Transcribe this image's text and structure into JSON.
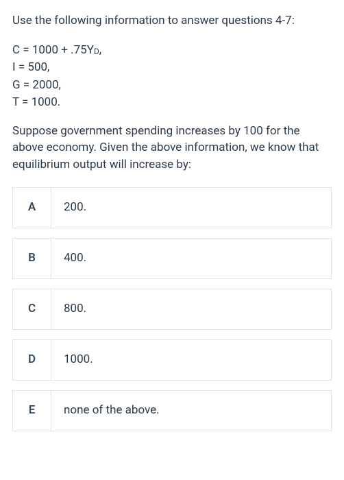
{
  "intro": "Use the following information to answer questions 4-7:",
  "equations": {
    "line1_pre": "C = 1000 + .75Y",
    "line1_sub": "D",
    "line1_post": ",",
    "line2": "I = 500,",
    "line3": "G = 2000,",
    "line4": "T = 1000."
  },
  "question": "Suppose government spending increases by 100 for the above economy. Given the above information, we know that equilibrium output will increase by:",
  "options": [
    {
      "letter": "A",
      "text": "200."
    },
    {
      "letter": "B",
      "text": "400."
    },
    {
      "letter": "C",
      "text": "800."
    },
    {
      "letter": "D",
      "text": "1000."
    },
    {
      "letter": "E",
      "text": "none of the above."
    }
  ],
  "colors": {
    "text": "#2b3a4a",
    "border": "#dfe3e8",
    "background": "#ffffff"
  },
  "typography": {
    "body_fontsize": 17,
    "line_height": 1.45,
    "letter_weight": 600
  }
}
